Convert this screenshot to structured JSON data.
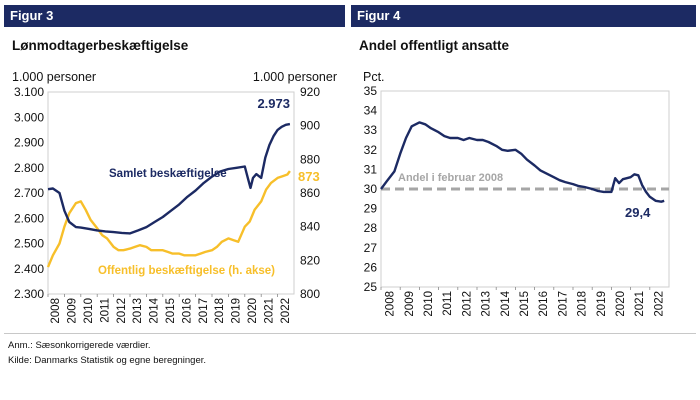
{
  "colors": {
    "navy": "#1c2a63",
    "yellow": "#f7bf2a",
    "grey": "#a6a6a6",
    "frame": "#cfcfcf"
  },
  "left": {
    "figure_label": "Figur 3",
    "title": "Lønmodtagerbeskæftigelse",
    "unit_left": "1.000 personer",
    "unit_right": "1.000 personer"
  },
  "right": {
    "figure_label": "Figur 4",
    "title": "Andel offentligt ansatte",
    "unit": "Pct."
  },
  "note": "Anm.: Sæsonkorrigerede værdier.",
  "source": "Kilde:  Danmarks Statistik og egne beregninger.",
  "chart_data": [
    {
      "type": "line",
      "title": "Lønmodtagerbeskæftigelse",
      "x_ticks": [
        "2008",
        "2009",
        "2010",
        "2011",
        "2012",
        "2013",
        "2014",
        "2015",
        "2016",
        "2017",
        "2018",
        "2019",
        "2020",
        "2021",
        "2022"
      ],
      "xlim": [
        2008,
        2023
      ],
      "y_left": {
        "label": "1.000 personer",
        "ylim": [
          2300,
          3100
        ],
        "ticks": [
          "2.300",
          "2.400",
          "2.500",
          "2.600",
          "2.700",
          "2.800",
          "2.900",
          "3.000",
          "3.100"
        ]
      },
      "y_right": {
        "label": "1.000 personer",
        "ylim": [
          800,
          920
        ],
        "ticks": [
          "800",
          "820",
          "840",
          "860",
          "880",
          "900",
          "920"
        ]
      },
      "series": [
        {
          "name": "Samlet beskæftigelse",
          "axis": "left",
          "color": "#1c2a63",
          "end_label": "2.973",
          "x": [
            2008.0,
            2008.3,
            2008.7,
            2009.0,
            2009.3,
            2009.7,
            2010.0,
            2010.5,
            2011.0,
            2011.5,
            2012.0,
            2012.5,
            2013.0,
            2013.5,
            2014.0,
            2014.5,
            2015.0,
            2015.5,
            2016.0,
            2016.5,
            2017.0,
            2017.5,
            2018.0,
            2018.5,
            2019.0,
            2019.5,
            2020.0,
            2020.2,
            2020.35,
            2020.5,
            2020.7,
            2021.0,
            2021.25,
            2021.5,
            2021.75,
            2022.0,
            2022.25,
            2022.5,
            2022.75
          ],
          "y": [
            2715,
            2718,
            2700,
            2630,
            2585,
            2565,
            2563,
            2558,
            2552,
            2548,
            2545,
            2542,
            2540,
            2552,
            2565,
            2585,
            2605,
            2630,
            2655,
            2685,
            2710,
            2740,
            2765,
            2785,
            2795,
            2800,
            2805,
            2755,
            2720,
            2760,
            2775,
            2760,
            2840,
            2890,
            2925,
            2950,
            2962,
            2970,
            2973
          ]
        },
        {
          "name": "Offentlig beskæftigelse (h. akse)",
          "axis": "right",
          "color": "#f7bf2a",
          "end_label": "873",
          "x": [
            2008.0,
            2008.3,
            2008.7,
            2009.0,
            2009.3,
            2009.7,
            2010.0,
            2010.3,
            2010.6,
            2011.0,
            2011.3,
            2011.6,
            2012.0,
            2012.3,
            2012.6,
            2013.0,
            2013.3,
            2013.6,
            2014.0,
            2014.3,
            2014.6,
            2015.0,
            2015.3,
            2015.6,
            2016.0,
            2016.3,
            2016.6,
            2017.0,
            2017.3,
            2017.6,
            2018.0,
            2018.3,
            2018.6,
            2019.0,
            2019.3,
            2019.6,
            2020.0,
            2020.3,
            2020.6,
            2021.0,
            2021.3,
            2021.6,
            2022.0,
            2022.3,
            2022.6,
            2022.75
          ],
          "y": [
            816,
            823,
            830,
            840,
            848,
            854,
            855,
            850,
            844,
            839,
            835,
            833,
            828,
            826,
            826,
            827,
            828,
            829,
            828,
            826,
            826,
            826,
            825,
            824,
            824,
            823,
            823,
            823,
            824,
            825,
            826,
            828,
            831,
            833,
            832,
            831,
            840,
            843,
            850,
            855,
            862,
            866,
            869,
            870,
            871,
            873
          ]
        }
      ],
      "annotations": [
        "Samlet beskæftigelse",
        "Offentlig beskæftigelse (h. akse)",
        "2.973",
        "873"
      ]
    },
    {
      "type": "line",
      "title": "Andel offentligt ansatte",
      "x_ticks": [
        "2008",
        "2009",
        "2010",
        "2011",
        "2012",
        "2013",
        "2014",
        "2015",
        "2016",
        "2017",
        "2018",
        "2019",
        "2020",
        "2021",
        "2022"
      ],
      "xlim": [
        2008,
        2023
      ],
      "y": {
        "label": "Pct.",
        "ylim": [
          25,
          35
        ],
        "ticks": [
          "25",
          "26",
          "27",
          "28",
          "29",
          "30",
          "31",
          "32",
          "33",
          "34",
          "35"
        ]
      },
      "series": [
        {
          "name": "Andel offentligt ansatte",
          "color": "#1c2a63",
          "end_label": "29,4",
          "x": [
            2008.0,
            2008.3,
            2008.7,
            2009.0,
            2009.3,
            2009.6,
            2010.0,
            2010.3,
            2010.6,
            2011.0,
            2011.3,
            2011.6,
            2012.0,
            2012.3,
            2012.6,
            2013.0,
            2013.3,
            2013.6,
            2014.0,
            2014.3,
            2014.6,
            2015.0,
            2015.3,
            2015.6,
            2016.0,
            2016.3,
            2016.6,
            2017.0,
            2017.3,
            2017.6,
            2018.0,
            2018.3,
            2018.6,
            2019.0,
            2019.3,
            2019.6,
            2020.0,
            2020.2,
            2020.4,
            2020.6,
            2020.8,
            2021.0,
            2021.2,
            2021.4,
            2021.6,
            2021.8,
            2022.0,
            2022.3,
            2022.6,
            2022.75
          ],
          "y": [
            30.0,
            30.4,
            30.9,
            31.8,
            32.6,
            33.2,
            33.4,
            33.3,
            33.1,
            32.9,
            32.7,
            32.6,
            32.6,
            32.5,
            32.6,
            32.5,
            32.5,
            32.4,
            32.2,
            32.0,
            31.95,
            32.0,
            31.8,
            31.5,
            31.2,
            30.95,
            30.8,
            30.6,
            30.45,
            30.35,
            30.25,
            30.15,
            30.1,
            30.0,
            29.9,
            29.85,
            29.85,
            30.55,
            30.3,
            30.5,
            30.55,
            30.6,
            30.75,
            30.7,
            30.2,
            29.85,
            29.6,
            29.4,
            29.35,
            29.4
          ]
        }
      ],
      "reference_line": {
        "label": "Andel i februar 2008",
        "value": 30.0,
        "color": "#a6a6a6"
      }
    }
  ]
}
